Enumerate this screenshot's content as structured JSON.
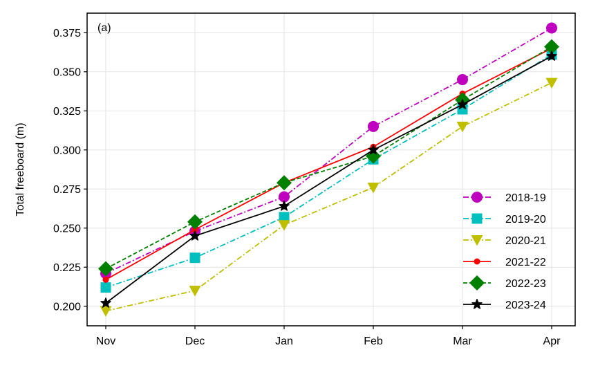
{
  "chart_data": {
    "type": "line",
    "panel_label": "(a)",
    "title": "",
    "xlabel": "",
    "ylabel": "Total freeboard (m)",
    "categories": [
      "Nov",
      "Dec",
      "Jan",
      "Feb",
      "Mar",
      "Apr"
    ],
    "ylim": [
      0.1875,
      0.3875
    ],
    "yticks": [
      0.2,
      0.225,
      0.25,
      0.275,
      0.3,
      0.325,
      0.35,
      0.375
    ],
    "ytick_labels": [
      "0.200",
      "0.225",
      "0.250",
      "0.275",
      "0.300",
      "0.325",
      "0.350",
      "0.375"
    ],
    "grid": true,
    "legend_position": "lower-right",
    "series": [
      {
        "name": "2018-19",
        "color": "#bf00bf",
        "linestyle": "dashdot",
        "marker": "circle",
        "values": [
          0.221,
          0.248,
          0.27,
          0.315,
          0.345,
          0.378
        ]
      },
      {
        "name": "2019-20",
        "color": "#00bfbf",
        "linestyle": "dashdot",
        "marker": "square",
        "values": [
          0.212,
          0.231,
          0.257,
          0.294,
          0.326,
          0.361
        ]
      },
      {
        "name": "2020-21",
        "color": "#bfbf00",
        "linestyle": "dashdot",
        "marker": "triangle-down",
        "values": [
          0.197,
          0.21,
          0.252,
          0.276,
          0.315,
          0.343
        ]
      },
      {
        "name": "2021-22",
        "color": "#ff0000",
        "linestyle": "solid",
        "marker": "small-circle",
        "values": [
          0.217,
          0.249,
          0.279,
          0.302,
          0.336,
          0.365
        ]
      },
      {
        "name": "2022-23",
        "color": "#008000",
        "linestyle": "dashed",
        "marker": "diamond",
        "values": [
          0.224,
          0.254,
          0.279,
          0.296,
          0.332,
          0.366
        ]
      },
      {
        "name": "2023-24",
        "color": "#000000",
        "linestyle": "solid",
        "marker": "star",
        "values": [
          0.202,
          0.245,
          0.264,
          0.3,
          0.329,
          0.36
        ]
      }
    ]
  }
}
